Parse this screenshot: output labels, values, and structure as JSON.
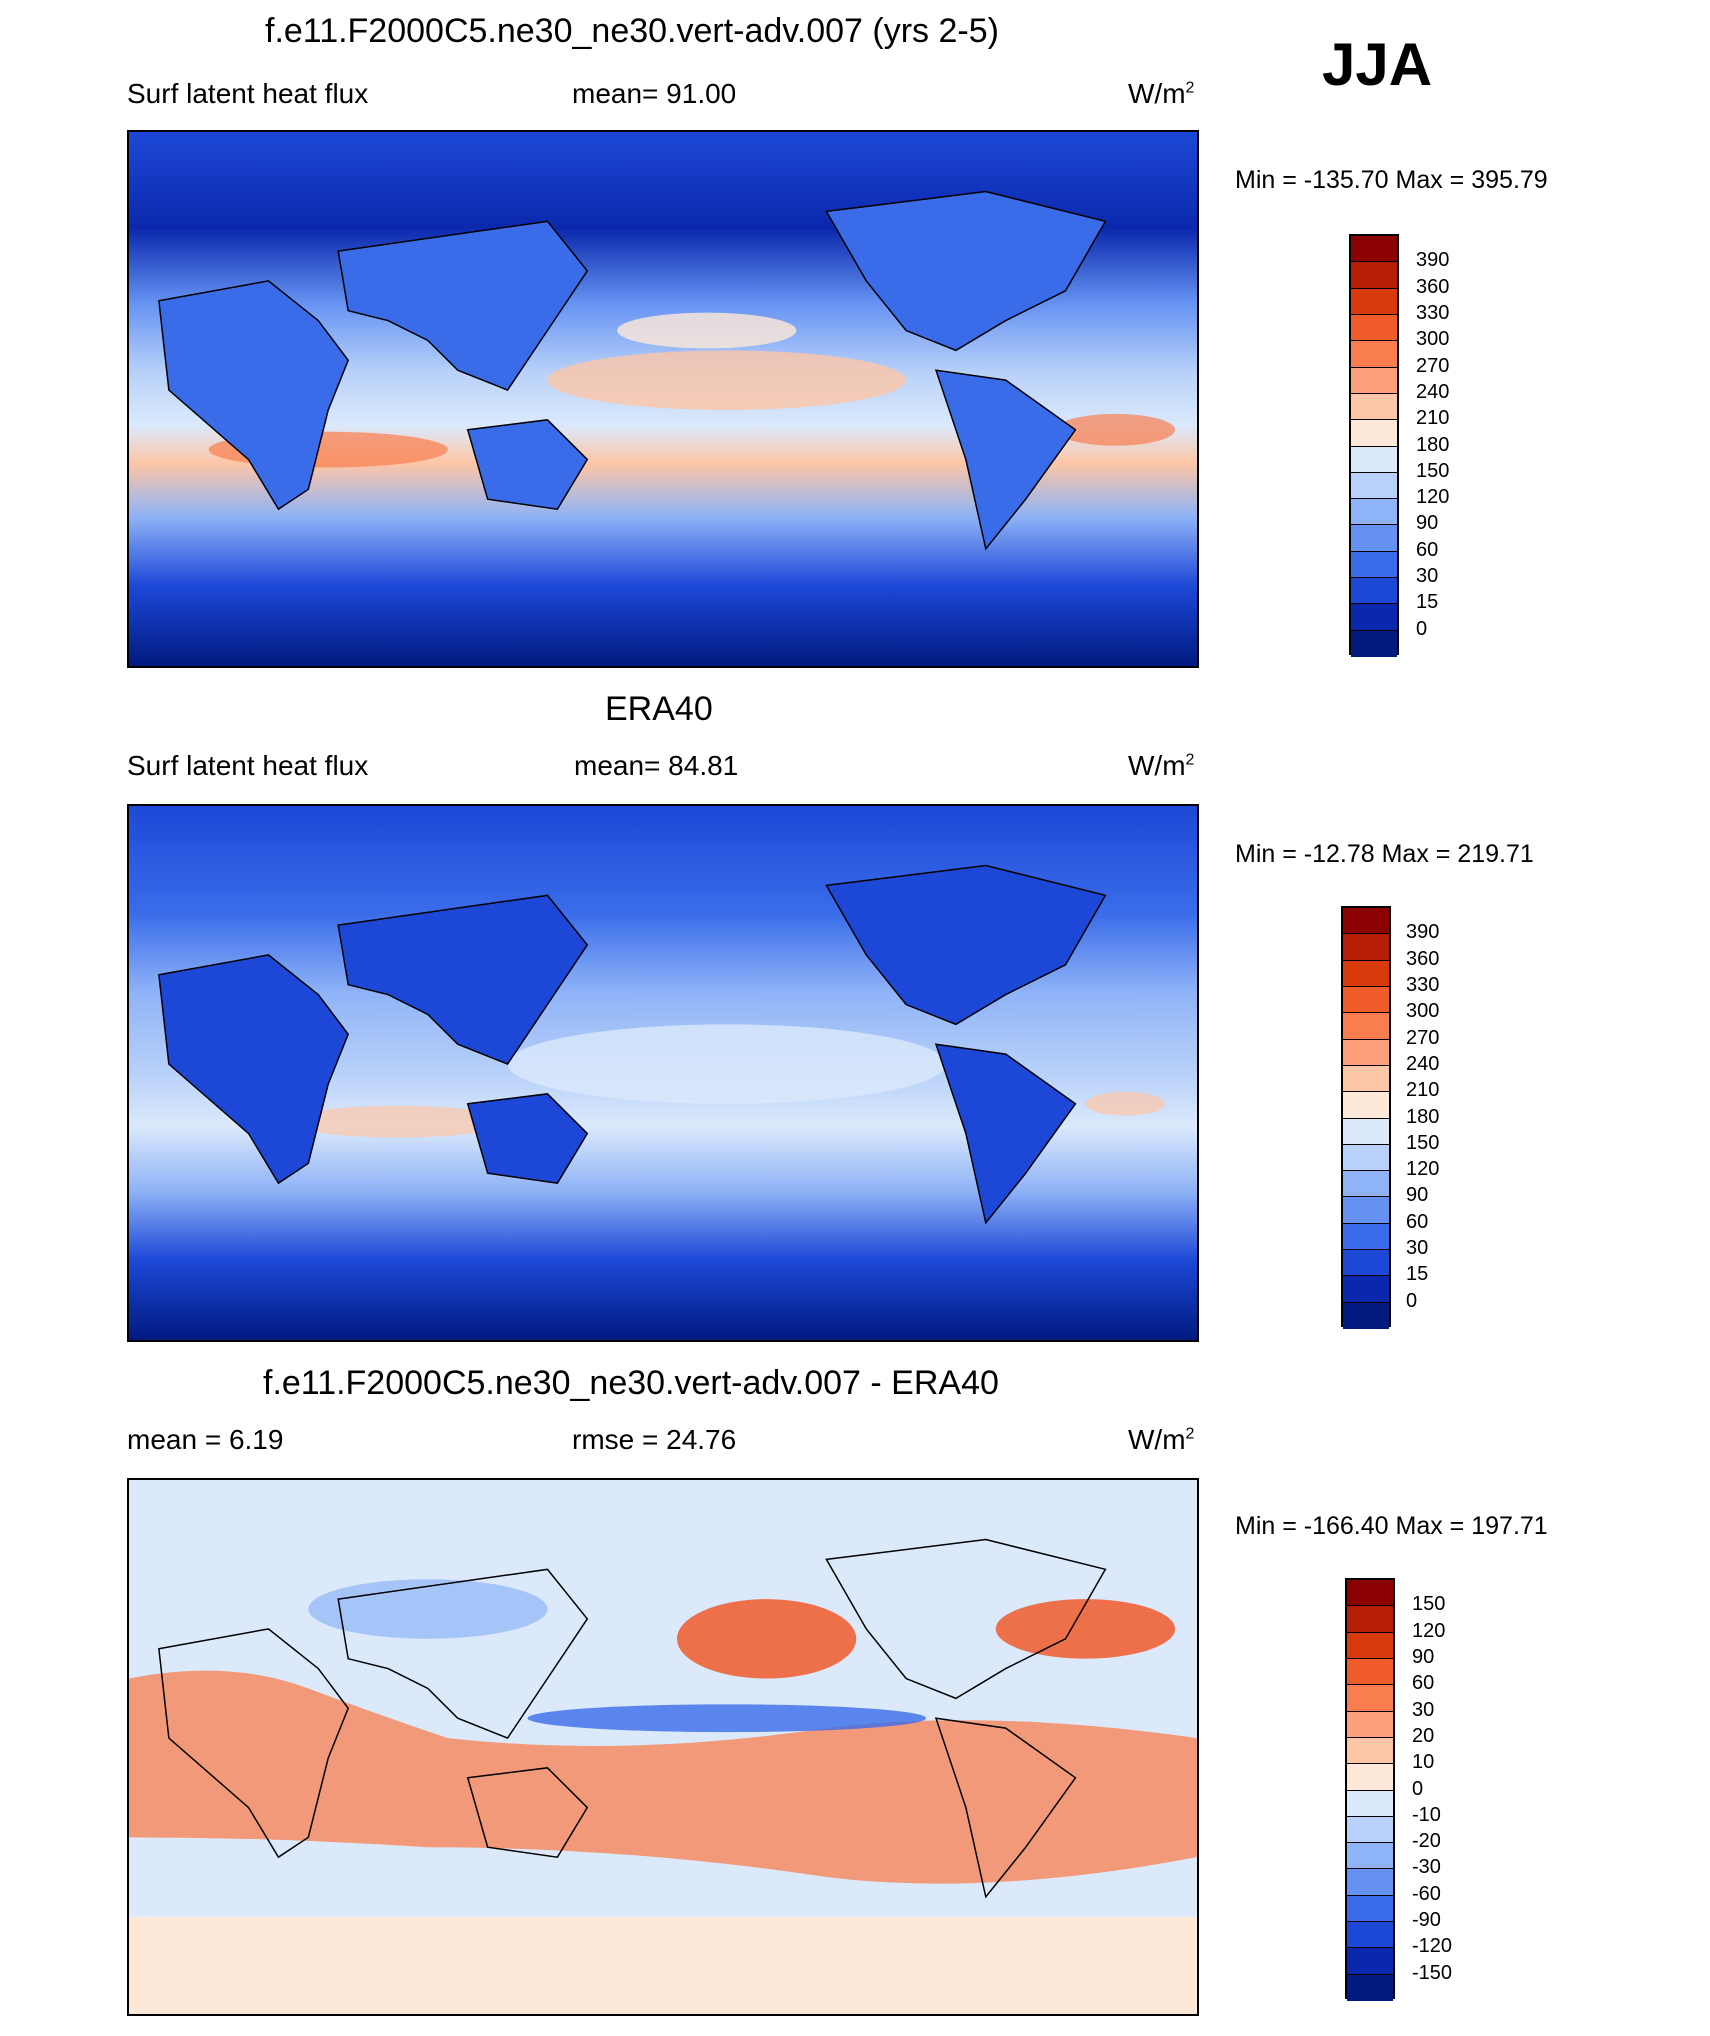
{
  "season": "JJA",
  "panels": [
    {
      "title": "f.e11.F2000C5.ne30_ne30.vert-adv.007 (yrs 2-5)",
      "left_label": "Surf latent heat flux",
      "center_label": "mean=  91.00",
      "units": "W/m",
      "units_sup": "2",
      "minmax": "Min = -135.70 Max = 395.79",
      "scale": "abs"
    },
    {
      "title": "ERA40",
      "left_label": "Surf latent heat flux",
      "center_label": "mean=  84.81",
      "units": "W/m",
      "units_sup": "2",
      "minmax": "Min = -12.78 Max = 219.71",
      "scale": "abs"
    },
    {
      "title": "f.e11.F2000C5.ne30_ne30.vert-adv.007 - ERA40",
      "left_label": "mean =   6.19",
      "center_label": "rmse =  24.76",
      "units": "W/m",
      "units_sup": "2",
      "minmax": "Min = -166.40 Max = 197.71",
      "scale": "diff"
    }
  ],
  "colorbars": {
    "abs": {
      "labels": [
        "390",
        "360",
        "330",
        "300",
        "270",
        "240",
        "210",
        "180",
        "150",
        "120",
        "90",
        "60",
        "30",
        "15",
        "0"
      ],
      "colors": [
        "#8b0000",
        "#b51d05",
        "#d93a0c",
        "#f05b2a",
        "#fa7d4f",
        "#fc9f7a",
        "#fdc6a6",
        "#fee9d8",
        "#dbe9fb",
        "#b8d1fa",
        "#8fb3f7",
        "#6592f2",
        "#3a6cea",
        "#1d48d7",
        "#0b28ad",
        "#001a80"
      ]
    },
    "diff": {
      "labels": [
        "150",
        "120",
        "90",
        "60",
        "30",
        "20",
        "10",
        "0",
        "-10",
        "-20",
        "-30",
        "-60",
        "-90",
        "-120",
        "-150"
      ],
      "colors": [
        "#8b0000",
        "#b51d05",
        "#d93a0c",
        "#f05b2a",
        "#fa7d4f",
        "#fc9f7a",
        "#fdc6a6",
        "#fee9d8",
        "#dbe9fb",
        "#b8d1fa",
        "#8fb3f7",
        "#6592f2",
        "#3a6cea",
        "#1d48d7",
        "#0b28ad",
        "#001a80"
      ]
    }
  },
  "chart_data": [
    {
      "type": "heatmap",
      "title": "f.e11.F2000C5.ne30_ne30.vert-adv.007 (yrs 2-5)",
      "variable": "Surf latent heat flux",
      "units": "W/m2",
      "mean": 91.0,
      "min": -135.7,
      "max": 395.79,
      "levels": [
        0,
        15,
        30,
        60,
        90,
        120,
        150,
        180,
        210,
        240,
        270,
        300,
        330,
        360,
        390
      ]
    },
    {
      "type": "heatmap",
      "title": "ERA40",
      "variable": "Surf latent heat flux",
      "units": "W/m2",
      "mean": 84.81,
      "min": -12.78,
      "max": 219.71,
      "levels": [
        0,
        15,
        30,
        60,
        90,
        120,
        150,
        180,
        210,
        240,
        270,
        300,
        330,
        360,
        390
      ]
    },
    {
      "type": "heatmap",
      "title": "f.e11.F2000C5.ne30_ne30.vert-adv.007 - ERA40",
      "units": "W/m2",
      "mean": 6.19,
      "rmse": 24.76,
      "min": -166.4,
      "max": 197.71,
      "levels": [
        -150,
        -120,
        -90,
        -60,
        -30,
        -20,
        -10,
        0,
        10,
        20,
        30,
        60,
        90,
        120,
        150
      ]
    }
  ]
}
